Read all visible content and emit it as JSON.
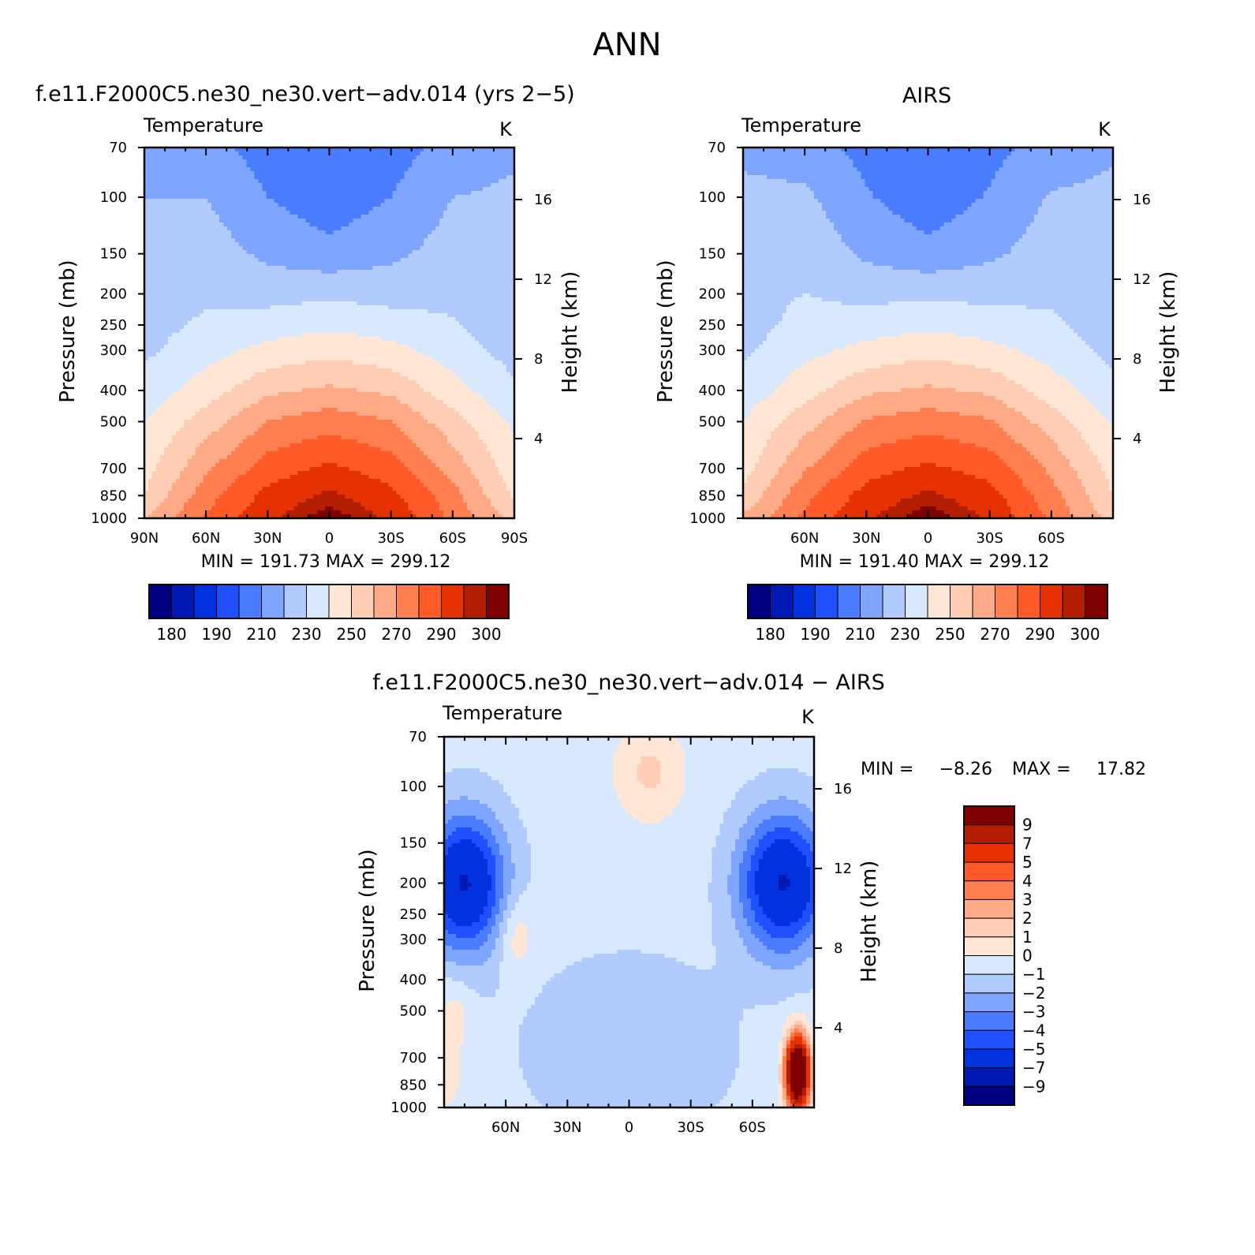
{
  "figure_title": "ANN",
  "colors": {
    "temperature_levels": [
      "#000080",
      "#0019b3",
      "#0032e0",
      "#1e50ff",
      "#4a7cff",
      "#7ea5ff",
      "#b2cbff",
      "#d8e8ff",
      "#ffe6d5",
      "#ffcdb4",
      "#ffaa87",
      "#ff7f50",
      "#ff5a28",
      "#e63200",
      "#b41e00",
      "#7f0000"
    ],
    "difference_levels": [
      "#000080",
      "#0019b3",
      "#0032e0",
      "#1e50ff",
      "#4a7cff",
      "#7ea5ff",
      "#b2cbff",
      "#d8e8ff",
      "#ffe6d5",
      "#ffcdb4",
      "#ffaa87",
      "#ff7f50",
      "#ff5a28",
      "#e63200",
      "#b41e00",
      "#7f0000"
    ]
  },
  "chart_data": [
    {
      "type": "heatmap",
      "panel_title": "f.e11.F2000C5.ne30_ne30.vert−adv.014 (yrs 2−5)",
      "variable": "Temperature",
      "units": "K",
      "ylabel": "Pressure (mb)",
      "y2label": "Height (km)",
      "x_ticks": [
        "90N",
        "60N",
        "30N",
        "0",
        "30S",
        "60S",
        "90S"
      ],
      "x_values": [
        90,
        60,
        30,
        0,
        -30,
        -60,
        -90
      ],
      "y_ticks": [
        "70",
        "100",
        "150",
        "200",
        "250",
        "300",
        "400",
        "500",
        "700",
        "850",
        "1000"
      ],
      "y_tick_values": [
        70,
        100,
        150,
        200,
        250,
        300,
        400,
        500,
        700,
        850,
        1000
      ],
      "height_ticks": [
        "16",
        "12",
        "8",
        "4"
      ],
      "height_values": [
        16,
        12,
        8,
        4
      ],
      "stats": "MIN = 191.73 MAX = 299.12",
      "min": 191.73,
      "max": 299.12,
      "colorbar_labels": [
        "180",
        "190",
        "210",
        "230",
        "250",
        "270",
        "290",
        "300"
      ],
      "levels": [
        175,
        180,
        185,
        190,
        200,
        210,
        220,
        230,
        240,
        250,
        260,
        270,
        280,
        290,
        295,
        300
      ],
      "profile_lat": [
        90,
        60,
        30,
        0,
        -30,
        -60,
        -90
      ],
      "profile_pressure": [
        70,
        100,
        150,
        200,
        250,
        300,
        400,
        500,
        700,
        850,
        1000
      ],
      "profile_values": [
        [
          205,
          210,
          214,
          214,
          216,
          218,
          224,
          230,
          236,
          240,
          250
        ],
        [
          203,
          210,
          215,
          218,
          222,
          226,
          235,
          245,
          258,
          266,
          271
        ],
        [
          196,
          200,
          208,
          216,
          225,
          233,
          248,
          260,
          275,
          283,
          288
        ],
        [
          192,
          194,
          203,
          218,
          228,
          237,
          252,
          266,
          282,
          292,
          299
        ],
        [
          196,
          200,
          208,
          216,
          225,
          233,
          248,
          260,
          275,
          283,
          288
        ],
        [
          203,
          210,
          214,
          217,
          221,
          225,
          234,
          244,
          256,
          264,
          268
        ],
        [
          208,
          212,
          215,
          214,
          214,
          216,
          222,
          228,
          234,
          238,
          246
        ]
      ]
    },
    {
      "type": "heatmap",
      "panel_title": "AIRS",
      "variable": "Temperature",
      "units": "K",
      "ylabel": "Pressure (mb)",
      "y2label": "Height (km)",
      "x_ticks": [
        "60N",
        "30N",
        "0",
        "30S",
        "60S"
      ],
      "x_values": [
        60,
        30,
        0,
        -30,
        -60
      ],
      "y_ticks": [
        "70",
        "100",
        "150",
        "200",
        "250",
        "300",
        "400",
        "500",
        "700",
        "850",
        "1000"
      ],
      "y_tick_values": [
        70,
        100,
        150,
        200,
        250,
        300,
        400,
        500,
        700,
        850,
        1000
      ],
      "height_ticks": [
        "16",
        "12",
        "8",
        "4"
      ],
      "height_values": [
        16,
        12,
        8,
        4
      ],
      "stats": "MIN = 191.40 MAX = 299.12",
      "min": 191.4,
      "max": 299.12,
      "colorbar_labels": [
        "180",
        "190",
        "210",
        "230",
        "250",
        "270",
        "290",
        "300"
      ],
      "levels": [
        175,
        180,
        185,
        190,
        200,
        210,
        220,
        230,
        240,
        250,
        260,
        270,
        280,
        290,
        295,
        300
      ],
      "profile_lat": [
        90,
        60,
        30,
        0,
        -30,
        -60,
        -90
      ],
      "profile_pressure": [
        70,
        100,
        150,
        200,
        250,
        300,
        400,
        500,
        700,
        850,
        1000
      ],
      "profile_values": [
        [
          206,
          214,
          218,
          217,
          216,
          218,
          224,
          230,
          236,
          242,
          252
        ],
        [
          204,
          212,
          217,
          220,
          223,
          227,
          236,
          246,
          259,
          267,
          272
        ],
        [
          197,
          201,
          208,
          217,
          225,
          233,
          248,
          261,
          276,
          284,
          289
        ],
        [
          191,
          194,
          203,
          218,
          228,
          237,
          252,
          266,
          282,
          292,
          299
        ],
        [
          197,
          201,
          208,
          217,
          225,
          233,
          248,
          261,
          276,
          284,
          289
        ],
        [
          204,
          211,
          215,
          218,
          222,
          226,
          235,
          245,
          258,
          264,
          268
        ],
        [
          209,
          212,
          214,
          213,
          214,
          217,
          223,
          229,
          236,
          240,
          246
        ]
      ]
    },
    {
      "type": "heatmap",
      "panel_title": "f.e11.F2000C5.ne30_ne30.vert−adv.014 − AIRS",
      "variable": "Temperature",
      "units": "K",
      "ylabel": "Pressure (mb)",
      "y2label": "Height (km)",
      "x_ticks": [
        "60N",
        "30N",
        "0",
        "30S",
        "60S"
      ],
      "x_values": [
        60,
        30,
        0,
        -30,
        -60
      ],
      "y_ticks": [
        "70",
        "100",
        "150",
        "200",
        "250",
        "300",
        "400",
        "500",
        "700",
        "850",
        "1000"
      ],
      "y_tick_values": [
        70,
        100,
        150,
        200,
        250,
        300,
        400,
        500,
        700,
        850,
        1000
      ],
      "height_ticks": [
        "16",
        "12",
        "8",
        "4"
      ],
      "height_values": [
        16,
        12,
        8,
        4
      ],
      "stats": "MIN = −8.26 MAX = 17.82",
      "stats_min_label": "MIN =",
      "stats_min_value": "−8.26",
      "stats_max_label": "MAX =",
      "stats_max_value": "17.82",
      "min": -8.26,
      "max": 17.82,
      "colorbar_labels": [
        "9",
        "7",
        "5",
        "4",
        "3",
        "2",
        "1",
        "0",
        "−1",
        "−2",
        "−3",
        "−4",
        "−5",
        "−7",
        "−9"
      ],
      "levels": [
        -9,
        -7,
        -5,
        -4,
        -3,
        -2,
        -1,
        0,
        1,
        2,
        3,
        4,
        5,
        7,
        9
      ],
      "anomaly_centers": [
        {
          "lat": 80,
          "p": 200,
          "amp": -6.5,
          "slat": 14,
          "sp": 0.35
        },
        {
          "lat": -75,
          "p": 200,
          "amp": -6.5,
          "slat": 15,
          "sp": 0.35
        },
        {
          "lat": -10,
          "p": 90,
          "amp": 1.8,
          "slat": 12,
          "sp": 0.25
        },
        {
          "lat": 0,
          "p": 650,
          "amp": -1.3,
          "slat": 35,
          "sp": 0.45
        },
        {
          "lat": -82,
          "p": 780,
          "amp": 16,
          "slat": 4,
          "sp": 0.18
        },
        {
          "lat": 55,
          "p": 290,
          "amp": 1.6,
          "slat": 6,
          "sp": 0.2
        },
        {
          "lat": 88,
          "p": 800,
          "amp": 1.4,
          "slat": 4,
          "sp": 0.15
        },
        {
          "lat": 85,
          "p": 520,
          "amp": 1.2,
          "slat": 6,
          "sp": 0.2
        }
      ],
      "anomaly_base": -0.6
    }
  ]
}
